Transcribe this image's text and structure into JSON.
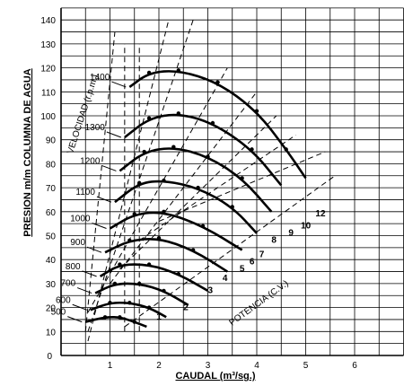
{
  "chart_data": {
    "type": "line",
    "xlabel": "CAUDAL (m³/sg.)",
    "ylabel": "PRESION m/m COLUMNA DE AGUA",
    "xlim": [
      0,
      7
    ],
    "ylim": [
      0,
      145
    ],
    "x_ticks": [
      "1",
      "2",
      "3",
      "4",
      "5",
      "6"
    ],
    "y_ticks": [
      "10",
      "20",
      "30",
      "40",
      "50",
      "60",
      "70",
      "80",
      "90",
      "100",
      "110",
      "120",
      "130",
      "140"
    ],
    "grid": true,
    "speed_axis_label": "VELOCIDAD (r.p.m.)",
    "power_axis_label": "POTENCIA (C.V.)",
    "series": [
      {
        "name": "500",
        "x": [
          0.5,
          0.9,
          1.2,
          1.5,
          1.75
        ],
        "y": [
          14,
          16,
          16,
          14,
          12
        ]
      },
      {
        "name": "600",
        "x": [
          0.6,
          1.0,
          1.4,
          1.8,
          2.15
        ],
        "y": [
          19,
          22,
          22,
          20,
          16
        ]
      },
      {
        "name": "700",
        "x": [
          0.7,
          1.1,
          1.6,
          2.1,
          2.6
        ],
        "y": [
          26,
          30,
          30,
          27,
          21
        ]
      },
      {
        "name": "800",
        "x": [
          0.8,
          1.2,
          1.8,
          2.4,
          3.0
        ],
        "y": [
          33,
          38,
          38,
          34,
          27
        ]
      },
      {
        "name": "900",
        "x": [
          0.9,
          1.4,
          2.0,
          2.7,
          3.4
        ],
        "y": [
          43,
          48,
          49,
          44,
          35
        ]
      },
      {
        "name": "1000",
        "x": [
          1.0,
          1.5,
          2.1,
          2.9,
          3.7
        ],
        "y": [
          53,
          59,
          60,
          54,
          44
        ]
      },
      {
        "name": "1100",
        "x": [
          1.1,
          1.6,
          2.1,
          2.8,
          3.5,
          4.0
        ],
        "y": [
          64,
          72,
          73,
          70,
          62,
          51
        ]
      },
      {
        "name": "1200",
        "x": [
          1.2,
          1.7,
          2.3,
          3.0,
          3.7,
          4.3
        ],
        "y": [
          77,
          85,
          87,
          83,
          74,
          60
        ]
      },
      {
        "name": "1300",
        "x": [
          1.3,
          1.8,
          2.4,
          3.1,
          3.9,
          4.5
        ],
        "y": [
          91,
          99,
          101,
          97,
          86,
          71
        ]
      },
      {
        "name": "1400",
        "x": [
          1.4,
          1.8,
          2.4,
          3.2,
          4.0,
          4.6,
          5.0
        ],
        "y": [
          112,
          118,
          119,
          114,
          102,
          86,
          74
        ]
      }
    ],
    "power_labels": [
      {
        "label": "1",
        "x": 1.95,
        "y": 15
      },
      {
        "label": "2",
        "x": 2.5,
        "y": 19
      },
      {
        "label": "3",
        "x": 3.0,
        "y": 26
      },
      {
        "label": "4",
        "x": 3.3,
        "y": 31
      },
      {
        "label": "5",
        "x": 3.65,
        "y": 35
      },
      {
        "label": "6",
        "x": 3.85,
        "y": 38
      },
      {
        "label": "7",
        "x": 4.05,
        "y": 41
      },
      {
        "label": "8",
        "x": 4.3,
        "y": 47
      },
      {
        "label": "9",
        "x": 4.65,
        "y": 50
      },
      {
        "label": "10",
        "x": 4.9,
        "y": 53
      },
      {
        "label": "12",
        "x": 5.2,
        "y": 58
      }
    ]
  }
}
